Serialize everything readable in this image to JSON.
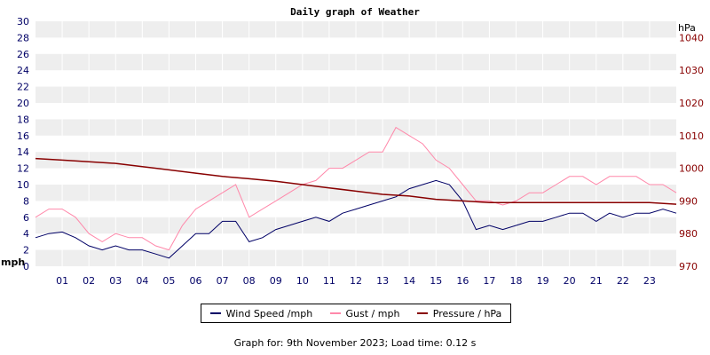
{
  "colors": {
    "wind": "#000066",
    "gust": "#ff88aa",
    "pressure": "#880000",
    "left_axis": "#000066",
    "right_axis": "#880000",
    "band": "#eeeeee"
  },
  "chart_data": {
    "type": "line",
    "title": "Daily graph of Weather",
    "left_axis": {
      "label": "mph",
      "ylim": [
        0,
        30
      ],
      "ticks": [
        "0",
        "2",
        "4",
        "6",
        "8",
        "10",
        "12",
        "14",
        "16",
        "18",
        "20",
        "22",
        "24",
        "26",
        "28",
        "30"
      ]
    },
    "right_axis": {
      "label": "hPa",
      "ylim": [
        970,
        1045
      ],
      "ticks": [
        "970",
        "980",
        "990",
        "1000",
        "1010",
        "1020",
        "1030",
        "1040"
      ]
    },
    "x_ticks": [
      "01",
      "02",
      "03",
      "04",
      "05",
      "06",
      "07",
      "08",
      "09",
      "10",
      "11",
      "12",
      "13",
      "14",
      "15",
      "16",
      "17",
      "18",
      "19",
      "20",
      "21",
      "22",
      "23"
    ],
    "x_range_hours": [
      0,
      24
    ],
    "series": [
      {
        "name": "Wind Speed /mph",
        "hours": [
          0,
          0.5,
          1,
          1.5,
          2,
          2.5,
          3,
          3.5,
          4,
          4.5,
          5,
          5.5,
          6,
          6.5,
          7,
          7.5,
          8,
          8.5,
          9,
          9.5,
          10,
          10.5,
          11,
          11.5,
          12,
          12.5,
          13,
          13.5,
          14,
          14.5,
          15,
          15.5,
          16,
          16.5,
          17,
          17.5,
          18,
          18.5,
          19,
          19.5,
          20,
          20.5,
          21,
          21.5,
          22,
          22.5,
          23,
          23.5,
          24
        ],
        "values": [
          3.5,
          4,
          4.2,
          3.5,
          2.5,
          2,
          2.5,
          2,
          2,
          1.5,
          1,
          2.5,
          4,
          4,
          5.5,
          5.5,
          3,
          3.5,
          4.5,
          5,
          5.5,
          6,
          5.5,
          6.5,
          7,
          7.5,
          8,
          8.5,
          9.5,
          10,
          10.5,
          10,
          8,
          4.5,
          5,
          4.5,
          5,
          5.5,
          5.5,
          6,
          6.5,
          6.5,
          5.5,
          6.5,
          6,
          6.5,
          6.5,
          7,
          6.5
        ]
      },
      {
        "name": "Gust / mph",
        "hours": [
          0,
          0.5,
          1,
          1.5,
          2,
          2.5,
          3,
          3.5,
          4,
          4.5,
          5,
          5.5,
          6,
          6.5,
          7,
          7.5,
          8,
          8.5,
          9,
          9.5,
          10,
          10.5,
          11,
          11.5,
          12,
          12.5,
          13,
          13.5,
          14,
          14.5,
          15,
          15.5,
          16,
          16.5,
          17,
          17.5,
          18,
          18.5,
          19,
          19.5,
          20,
          20.5,
          21,
          21.5,
          22,
          22.5,
          23,
          23.5,
          24
        ],
        "values": [
          6,
          7,
          7,
          6,
          4,
          3,
          4,
          3.5,
          3.5,
          2.5,
          2,
          5,
          7,
          8,
          9,
          10,
          6,
          7,
          8,
          9,
          10,
          10.5,
          12,
          12,
          13,
          14,
          14,
          17,
          16,
          15,
          13,
          12,
          10,
          8,
          8,
          7.5,
          8,
          9,
          9,
          10,
          11,
          11,
          10,
          11,
          11,
          11,
          10,
          10,
          9
        ]
      },
      {
        "name": "Pressure / hPa",
        "hours": [
          0,
          1,
          2,
          3,
          4,
          5,
          6,
          7,
          8,
          9,
          10,
          11,
          12,
          13,
          14,
          15,
          16,
          17,
          18,
          19,
          20,
          21,
          22,
          23,
          24
        ],
        "values": [
          1003,
          1002.5,
          1002,
          1001.5,
          1000.5,
          999.5,
          998.5,
          997.5,
          996.8,
          996,
          995,
          994,
          993,
          992,
          991.5,
          990.5,
          990,
          989.5,
          989.5,
          989.5,
          989.5,
          989.5,
          989.5,
          989.5,
          989
        ]
      }
    ]
  },
  "legend": {
    "wind_label": "Wind Speed /mph",
    "gust_label": "Gust / mph",
    "pressure_label": "Pressure / hPa"
  },
  "footer": {
    "text": "Graph for: 9th November 2023; Load time: 0.12 s"
  }
}
